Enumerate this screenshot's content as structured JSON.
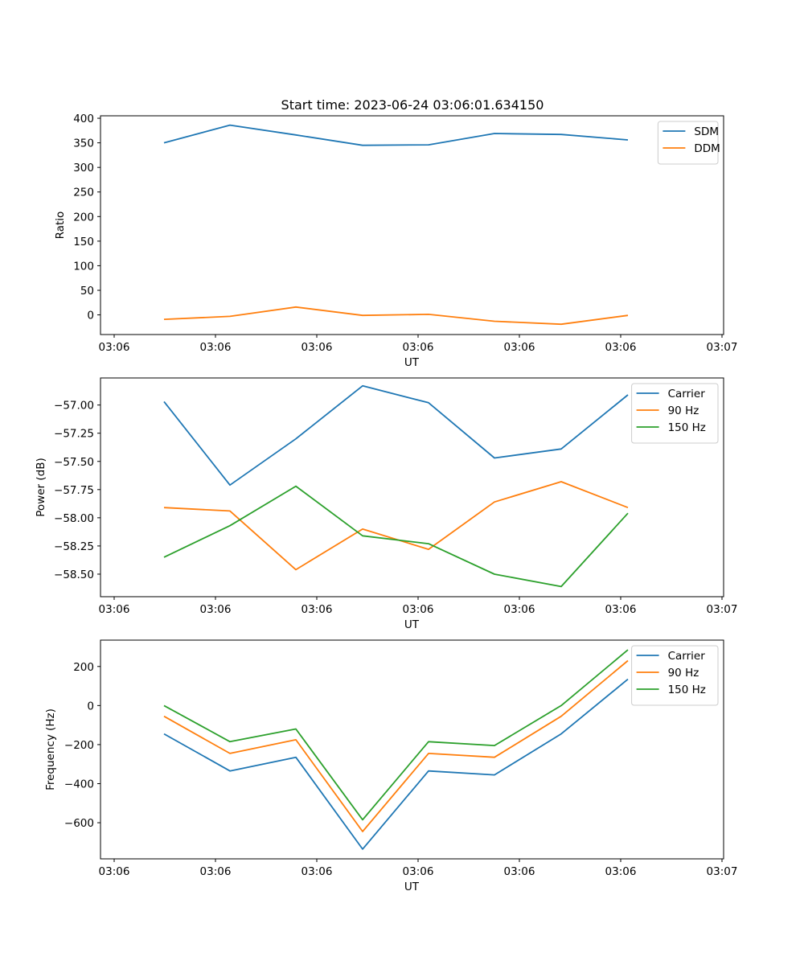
{
  "figure": {
    "title": "Start time: 2023-06-24 03:06:01.634150"
  },
  "colors": {
    "blue": "#1f77b4",
    "orange": "#ff7f0e",
    "green": "#2ca02c"
  },
  "chart_data": [
    {
      "type": "line",
      "title": "Start time: 2023-06-24 03:06:01.634150",
      "xlabel": "UT",
      "ylabel": "Ratio",
      "x_ticks": [
        "03:06",
        "03:06",
        "03:06",
        "03:06",
        "03:06",
        "03:06",
        "03:07"
      ],
      "y_ticks": [
        "0",
        "50",
        "100",
        "150",
        "200",
        "250",
        "300",
        "350",
        "400"
      ],
      "ylim": [
        -40,
        405
      ],
      "legend": "top-right",
      "series": [
        {
          "name": "SDM",
          "color": "#1f77b4",
          "values": [
            350,
            386,
            366,
            345,
            346,
            369,
            367,
            356
          ]
        },
        {
          "name": "DDM",
          "color": "#ff7f0e",
          "values": [
            -9,
            -3,
            16,
            -1,
            1,
            -13,
            -19,
            -1
          ]
        }
      ]
    },
    {
      "type": "line",
      "xlabel": "UT",
      "ylabel": "Power (dB)",
      "x_ticks": [
        "03:06",
        "03:06",
        "03:06",
        "03:06",
        "03:06",
        "03:06",
        "03:07"
      ],
      "y_ticks": [
        "−58.50",
        "−58.25",
        "−58.00",
        "−57.75",
        "−57.50",
        "−57.25",
        "−57.00"
      ],
      "ylim": [
        -58.7,
        -56.76
      ],
      "legend": "top-right",
      "series": [
        {
          "name": "Carrier",
          "color": "#1f77b4",
          "values": [
            -56.97,
            -57.71,
            -57.3,
            -56.83,
            -56.98,
            -57.47,
            -57.39,
            -56.91
          ]
        },
        {
          "name": "90 Hz",
          "color": "#ff7f0e",
          "values": [
            -57.91,
            -57.94,
            -58.46,
            -58.1,
            -58.28,
            -57.86,
            -57.68,
            -57.91
          ]
        },
        {
          "name": "150 Hz",
          "color": "#2ca02c",
          "values": [
            -58.35,
            -58.07,
            -57.72,
            -58.16,
            -58.23,
            -58.5,
            -58.61,
            -57.96
          ]
        }
      ]
    },
    {
      "type": "line",
      "xlabel": "UT",
      "ylabel": "Frequency (Hz)",
      "x_ticks": [
        "03:06",
        "03:06",
        "03:06",
        "03:06",
        "03:06",
        "03:06",
        "03:07"
      ],
      "y_ticks": [
        "−600",
        "−400",
        "−200",
        "0",
        "200"
      ],
      "ylim": [
        -785,
        335
      ],
      "legend": "top-right",
      "series": [
        {
          "name": "Carrier",
          "color": "#1f77b4",
          "values": [
            -145,
            -335,
            -265,
            -735,
            -335,
            -355,
            -145,
            135
          ]
        },
        {
          "name": "90 Hz",
          "color": "#ff7f0e",
          "values": [
            -55,
            -245,
            -175,
            -645,
            -245,
            -265,
            -55,
            230
          ]
        },
        {
          "name": "150 Hz",
          "color": "#2ca02c",
          "values": [
            0,
            -185,
            -120,
            -585,
            -185,
            -205,
            0,
            285
          ]
        }
      ]
    }
  ]
}
